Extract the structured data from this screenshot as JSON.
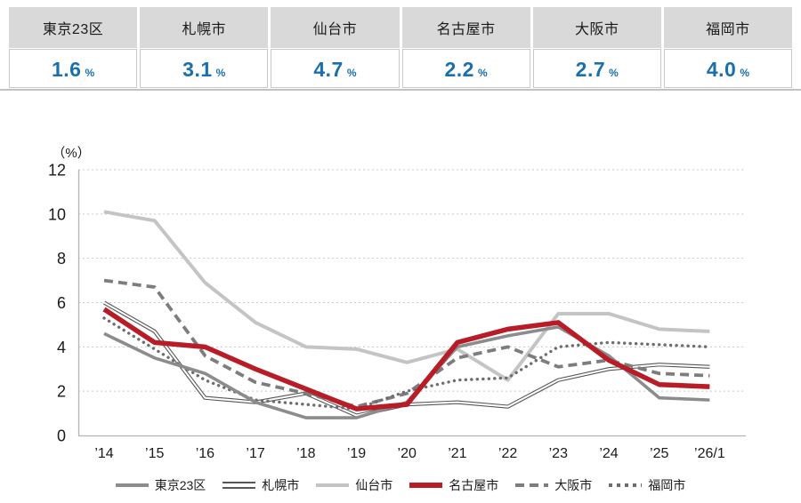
{
  "summary_cards": [
    {
      "city": "東京23区",
      "value": "1.6",
      "unit": "%"
    },
    {
      "city": "札幌市",
      "value": "3.1",
      "unit": "%"
    },
    {
      "city": "仙台市",
      "value": "4.7",
      "unit": "%"
    },
    {
      "city": "名古屋市",
      "value": "2.2",
      "unit": "%"
    },
    {
      "city": "大阪市",
      "value": "2.7",
      "unit": "%"
    },
    {
      "city": "福岡市",
      "value": "4.0",
      "unit": "%"
    }
  ],
  "colors": {
    "value_blue": "#1a6fad",
    "header_cell_gray": "#d9d9d9",
    "axis_gray": "#b3b3b3",
    "gridline_gray": "#c9c9c9"
  },
  "chart_data": {
    "type": "line",
    "unit_label": "（%）",
    "categories": [
      "’14",
      "’15",
      "’16",
      "’17",
      "’18",
      "’19",
      "’20",
      "’21",
      "’22",
      "’23",
      "’24",
      "’25",
      "’26/1"
    ],
    "ylim": [
      0,
      12
    ],
    "yticks": [
      0,
      2,
      4,
      6,
      8,
      10,
      12
    ],
    "grid": true,
    "legend_position": "bottom",
    "series": [
      {
        "name": "東京23区",
        "style": "solid-gray",
        "color": "#8c8c8c",
        "values": [
          4.6,
          3.5,
          2.8,
          1.5,
          0.8,
          0.8,
          1.5,
          4.0,
          4.5,
          4.9,
          3.6,
          1.7,
          1.6
        ]
      },
      {
        "name": "札幌市",
        "style": "double",
        "color": "#575757",
        "values": [
          6.0,
          4.7,
          1.7,
          1.5,
          1.9,
          0.9,
          1.4,
          1.5,
          1.3,
          2.5,
          3.0,
          3.2,
          3.1
        ]
      },
      {
        "name": "仙台市",
        "style": "solid-light",
        "color": "#c4c4c4",
        "values": [
          10.1,
          9.7,
          6.9,
          5.1,
          4.0,
          3.9,
          3.3,
          3.9,
          2.5,
          5.5,
          5.5,
          4.8,
          4.7
        ]
      },
      {
        "name": "名古屋市",
        "style": "solid-red",
        "color": "#b71c27",
        "values": [
          5.7,
          4.2,
          4.0,
          3.0,
          2.1,
          1.2,
          1.4,
          4.2,
          4.8,
          5.1,
          3.4,
          2.3,
          2.2
        ]
      },
      {
        "name": "大阪市",
        "style": "dashed",
        "color": "#7d7d7d",
        "values": [
          7.0,
          6.7,
          3.6,
          2.4,
          1.9,
          1.3,
          1.9,
          3.5,
          4.0,
          3.1,
          3.4,
          2.8,
          2.7
        ]
      },
      {
        "name": "福岡市",
        "style": "dotted",
        "color": "#6e6e6e",
        "values": [
          5.3,
          3.9,
          2.5,
          1.6,
          1.4,
          1.2,
          2.0,
          2.5,
          2.6,
          4.0,
          4.2,
          4.1,
          4.0
        ]
      }
    ]
  }
}
